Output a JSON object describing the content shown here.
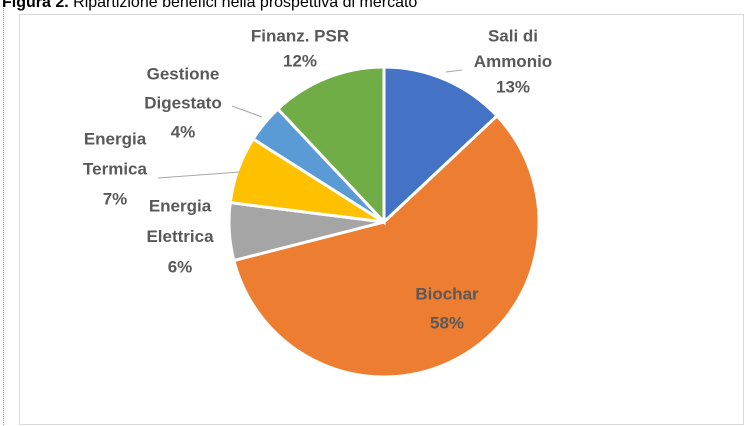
{
  "chart_data": {
    "type": "pie",
    "figure_label": "Figura 2.",
    "title": "Ripartizione benefici nella prospettiva di mercato",
    "categories": [
      [
        "Sali di",
        "Ammonio"
      ],
      [
        "Biochar"
      ],
      [
        "Energia",
        "Elettrica"
      ],
      [
        "Energia",
        "Termica"
      ],
      [
        "Gestione",
        "Digestato"
      ],
      [
        "Finanz. PSR"
      ]
    ],
    "values": [
      13,
      58,
      6,
      7,
      4,
      12
    ],
    "value_labels": [
      "13%",
      "58%",
      "6%",
      "7%",
      "4%",
      "12%"
    ],
    "colors": [
      "#4472c4",
      "#ed7d31",
      "#a5a5a5",
      "#ffc000",
      "#5b9bd5",
      "#70ad47"
    ]
  }
}
